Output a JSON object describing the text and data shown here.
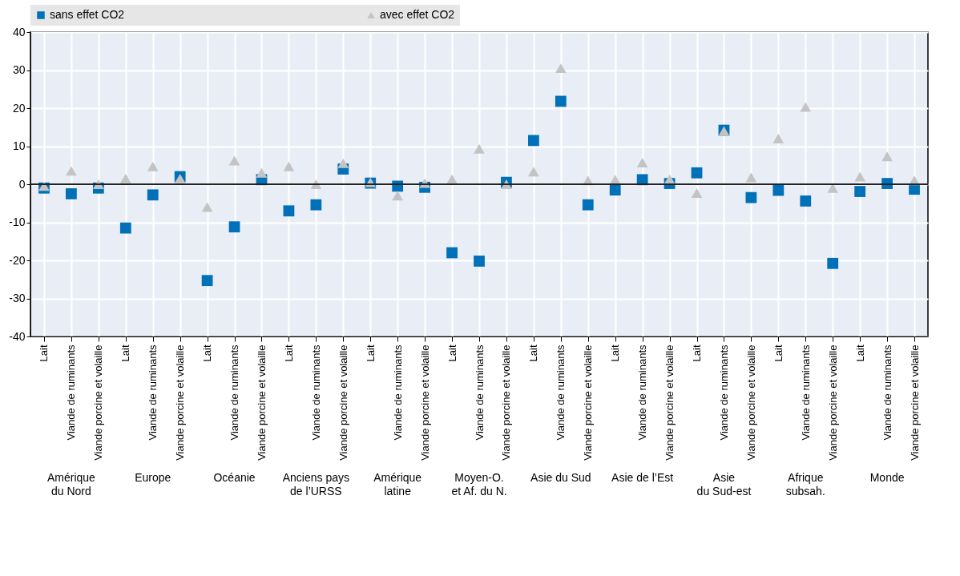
{
  "chart_data": {
    "type": "scatter",
    "categories": [
      "Lait",
      "Viande de ruminants",
      "Viande porcine et volaille",
      "Lait",
      "Viande de ruminants",
      "Viande porcine et volaille",
      "Lait",
      "Viande de ruminants",
      "Viande porcine et volaille",
      "Lait",
      "Viande de ruminants",
      "Viande porcine et volaille",
      "Lait",
      "Viande de ruminants",
      "Viande porcine et volaille",
      "Lait",
      "Viande de ruminants",
      "Viande porcine et volaille",
      "Lait",
      "Viande de ruminants",
      "Viande porcine et volaille",
      "Lait",
      "Viande de ruminants",
      "Viande porcine et volaille",
      "Lait",
      "Viande de ruminants",
      "Viande porcine et volaille",
      "Lait",
      "Viande de ruminants",
      "Viande porcine et volaille",
      "Lait",
      "Viande de ruminants",
      "Viande porcine et volaille"
    ],
    "series": [
      {
        "name": "sans effet CO2",
        "color": "#0070b8",
        "marker": "square",
        "values": [
          -1,
          -2.5,
          -1,
          -11.5,
          -2.8,
          2,
          -25.3,
          -11.2,
          1.2,
          -7,
          -5.4,
          4,
          0.3,
          -0.5,
          -0.8,
          -18,
          -20.2,
          0.5,
          11.5,
          21.8,
          -5.4,
          -1.5,
          1.2,
          0.2,
          3,
          14.2,
          -3.5,
          -1.6,
          -4.4,
          -20.8,
          -1.9,
          0.2,
          -1.3
        ]
      },
      {
        "name": "avec effet CO2",
        "color": "#c4c4c4",
        "marker": "triangle",
        "values": [
          -0.5,
          3.5,
          0,
          1.5,
          4.7,
          1.5,
          -6,
          6.2,
          3,
          4.7,
          0,
          5.5,
          0.5,
          -3,
          0.3,
          1.3,
          9.3,
          0,
          3.3,
          30.5,
          1,
          1.2,
          5.7,
          1.3,
          -2.3,
          14,
          1.8,
          12,
          20.3,
          -1,
          2,
          7.3,
          1
        ]
      }
    ],
    "annotations": [
      "Amérique\ndu Nord",
      "Europe",
      "Océanie",
      "Anciens pays\nde l’URSS",
      "Amérique\nlatine",
      "Moyen-O.\net Af. du N.",
      "Asie du Sud",
      "Asie de l’Est",
      "Asie\ndu Sud-est",
      "Afrique\nsubsah.",
      "Monde"
    ],
    "ylim": [
      -40,
      40
    ],
    "yticks": [
      -40,
      -30,
      -20,
      -10,
      0,
      10,
      20,
      30,
      40
    ],
    "ref_lines": [
      {
        "axis": "y",
        "value": 0,
        "color": "#222222"
      }
    ],
    "grid": true,
    "legend": "top"
  }
}
